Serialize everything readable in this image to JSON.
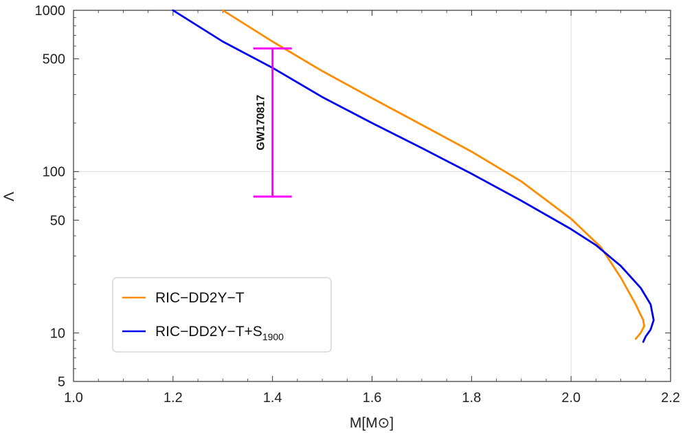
{
  "chart_data": {
    "type": "line",
    "title": "",
    "xlabel": "M[M⊙]",
    "ylabel": "Λ",
    "xlim": [
      1.0,
      2.2
    ],
    "ylim": [
      5,
      1000
    ],
    "yscale": "log",
    "grid": "x=2.0, y=100 only",
    "xticks": [
      1.0,
      1.2,
      1.4,
      1.6,
      1.8,
      2.0,
      2.2
    ],
    "xtick_labels": [
      "1.0",
      "1.2",
      "1.4",
      "1.6",
      "1.8",
      "2.0",
      "2.2"
    ],
    "yticks": [
      5,
      10,
      50,
      100,
      500,
      1000
    ],
    "ytick_labels": [
      "5",
      "10",
      "50",
      "100",
      "500",
      "1000"
    ],
    "series": [
      {
        "name": "RIC−DD2Y−T",
        "color": "#ff8c00",
        "x": [
          1.3,
          1.4,
          1.5,
          1.6,
          1.7,
          1.8,
          1.9,
          2.0,
          2.06,
          2.1,
          2.13,
          2.145,
          2.147,
          2.14,
          2.13
        ],
        "y": [
          1000,
          640,
          420,
          285,
          195,
          133,
          87,
          51,
          34,
          22,
          15,
          12,
          11,
          10,
          9.2
        ]
      },
      {
        "name": "RIC−DD2Y−T+S",
        "name_sub": "1900",
        "color": "#0000ee",
        "x": [
          1.2,
          1.3,
          1.4,
          1.5,
          1.6,
          1.7,
          1.8,
          1.9,
          2.0,
          2.05,
          2.1,
          2.14,
          2.16,
          2.166,
          2.16,
          2.15,
          2.145
        ],
        "y": [
          1000,
          640,
          440,
          290,
          200,
          140,
          97,
          66,
          44,
          35,
          26,
          19,
          15,
          12,
          10.5,
          9.5,
          8.8
        ]
      }
    ],
    "errorbar": {
      "label": "GW170817",
      "color": "#ff00ff",
      "x": 1.4,
      "y_low": 70,
      "y_high": 580
    },
    "legend_position": "bottom-left"
  }
}
